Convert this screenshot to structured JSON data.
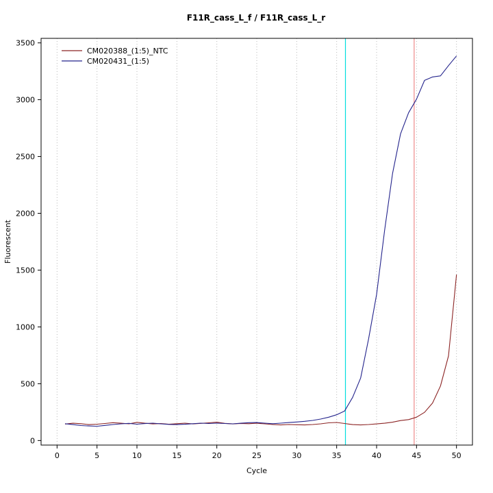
{
  "chart_data": {
    "type": "line",
    "title": "F11R_cass_L_f / F11R_cass_L_r",
    "xlabel": "Cycle",
    "ylabel": "Fluorescent",
    "xlim": [
      0,
      50
    ],
    "ylim": [
      0,
      3500
    ],
    "xticks": [
      0,
      5,
      10,
      15,
      20,
      25,
      30,
      35,
      40,
      45,
      50
    ],
    "yticks": [
      0,
      500,
      1000,
      1500,
      2000,
      2500,
      3000,
      3500
    ],
    "grid": "vertical-dotted",
    "grid_color": "#b8b8b8",
    "legend_position": "top-left",
    "x": [
      1,
      2,
      3,
      4,
      5,
      6,
      7,
      8,
      9,
      10,
      11,
      12,
      13,
      14,
      15,
      16,
      17,
      18,
      19,
      20,
      21,
      22,
      23,
      24,
      25,
      26,
      27,
      28,
      29,
      30,
      31,
      32,
      33,
      34,
      35,
      36,
      37,
      38,
      39,
      40,
      41,
      42,
      43,
      44,
      45,
      46,
      47,
      48,
      49,
      50
    ],
    "series": [
      {
        "name": "CM020388_(1:5)_NTC",
        "color": "#8b2323",
        "values": [
          145,
          152,
          148,
          140,
          144,
          150,
          157,
          152,
          147,
          160,
          152,
          146,
          149,
          144,
          148,
          153,
          146,
          151,
          156,
          161,
          151,
          146,
          150,
          148,
          152,
          147,
          141,
          137,
          141,
          139,
          137,
          141,
          147,
          156,
          159,
          150,
          140,
          137,
          141,
          146,
          152,
          161,
          176,
          184,
          205,
          248,
          330,
          480,
          745,
          1460
        ]
      },
      {
        "name": "CM020431_(1:5)",
        "color": "#22228b",
        "values": [
          148,
          140,
          132,
          128,
          126,
          133,
          141,
          147,
          151,
          144,
          149,
          153,
          147,
          142,
          140,
          143,
          148,
          153,
          150,
          153,
          150,
          147,
          152,
          157,
          158,
          153,
          148,
          153,
          158,
          163,
          169,
          177,
          189,
          205,
          227,
          260,
          380,
          550,
          894,
          1286,
          1850,
          2350,
          2700,
          2885,
          3005,
          3170,
          3200,
          3210,
          3300,
          3385
        ]
      }
    ],
    "threshold_lines": [
      {
        "axis": "x",
        "value": 36.1,
        "color": "#00dede",
        "name": "ct-threshold-cyan"
      },
      {
        "axis": "x",
        "value": 44.7,
        "color": "#ef8a8a",
        "name": "ct-threshold-salmon"
      }
    ]
  }
}
